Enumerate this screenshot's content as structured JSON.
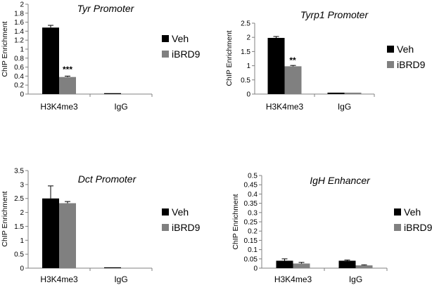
{
  "figure": {
    "colors": {
      "Veh": "#000000",
      "iBRD9": "#808080",
      "axis": "#808080",
      "errorbar": "#000000"
    }
  },
  "chart_data": [
    {
      "type": "bar",
      "title": "Tyr Promoter",
      "ylabel": "ChIP Enrichment",
      "xlabel": "",
      "categories": [
        "H3K4me3",
        "IgG"
      ],
      "ylim": [
        0,
        2
      ],
      "yticks": [
        "0",
        "0.2",
        "0.4",
        "0.6",
        "0.8",
        "1",
        "1.2",
        "1.4",
        "1.6",
        "1.8",
        "2"
      ],
      "grid": false,
      "legend_position": "right",
      "series": [
        {
          "name": "Veh",
          "values": [
            1.48,
            0.02
          ],
          "errors": [
            0.05,
            0.0
          ]
        },
        {
          "name": "iBRD9",
          "values": [
            0.38,
            0.0
          ],
          "errors": [
            0.02,
            0.0
          ]
        }
      ],
      "annotations": [
        {
          "text": "***",
          "category": "H3K4me3",
          "series": "iBRD9"
        }
      ]
    },
    {
      "type": "bar",
      "title": "Tyrp1 Promoter",
      "ylabel": "ChIP Enrichment",
      "xlabel": "",
      "categories": [
        "H3K4me3",
        "IgG"
      ],
      "ylim": [
        0,
        2.5
      ],
      "yticks": [
        "0",
        "0.5",
        "1",
        "1.5",
        "2",
        "2.5"
      ],
      "grid": false,
      "legend_position": "right",
      "series": [
        {
          "name": "Veh",
          "values": [
            1.98,
            0.05
          ],
          "errors": [
            0.05,
            0.0
          ]
        },
        {
          "name": "iBRD9",
          "values": [
            0.98,
            0.05
          ],
          "errors": [
            0.03,
            0.0
          ]
        }
      ],
      "annotations": [
        {
          "text": "**",
          "category": "H3K4me3",
          "series": "iBRD9"
        }
      ]
    },
    {
      "type": "bar",
      "title": "Dct Promoter",
      "ylabel": "ChIP Enrichment",
      "xlabel": "",
      "categories": [
        "H3K4me3",
        "IgG"
      ],
      "ylim": [
        0,
        3.5
      ],
      "yticks": [
        "0",
        "0.5",
        "1",
        "1.5",
        "2",
        "2.5",
        "3",
        "3.5"
      ],
      "grid": false,
      "legend_position": "right",
      "series": [
        {
          "name": "Veh",
          "values": [
            2.5,
            0.03
          ],
          "errors": [
            0.45,
            0.0
          ]
        },
        {
          "name": "iBRD9",
          "values": [
            2.33,
            0.0
          ],
          "errors": [
            0.06,
            0.0
          ]
        }
      ],
      "annotations": []
    },
    {
      "type": "bar",
      "title": "IgH Enhancer",
      "ylabel": "ChIP Enrichment",
      "xlabel": "",
      "categories": [
        "H3K4me3",
        "IgG"
      ],
      "ylim": [
        0,
        0.5
      ],
      "yticks": [
        "0",
        "0.05",
        "0.1",
        "0.15",
        "0.2",
        "0.25",
        "0.3",
        "0.35",
        "0.4",
        "0.45",
        "0.5"
      ],
      "grid": false,
      "legend_position": "right",
      "series": [
        {
          "name": "Veh",
          "values": [
            0.04,
            0.04
          ],
          "errors": [
            0.01,
            0.004
          ]
        },
        {
          "name": "iBRD9",
          "values": [
            0.025,
            0.015
          ],
          "errors": [
            0.006,
            0.003
          ]
        }
      ],
      "annotations": []
    }
  ]
}
